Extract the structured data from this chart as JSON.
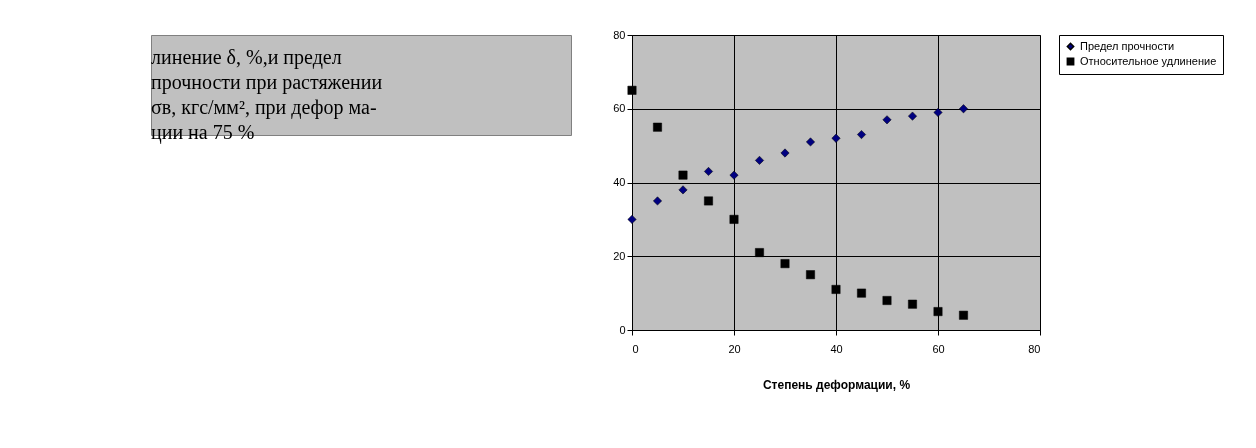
{
  "chart_data": {
    "type": "scatter",
    "xlabel": "Степень деформации, %",
    "annotations": [
      "линение δ, %,и предел",
      "прочности при растяжении",
      "σв, кгс/мм², при дефор ма-",
      "ции на 75 %"
    ],
    "x": [
      0,
      5,
      10,
      15,
      20,
      25,
      30,
      35,
      40,
      45,
      50,
      55,
      60,
      65
    ],
    "series": [
      {
        "name": "Предел прочности",
        "color": "#000080",
        "marker": "diamond",
        "values": [
          30,
          35,
          38,
          43,
          42,
          46,
          48,
          51,
          52,
          53,
          57,
          58,
          59,
          60
        ]
      },
      {
        "name": "Относительное удлинение",
        "color": "#000000",
        "marker": "square",
        "values": [
          65,
          55,
          42,
          35,
          30,
          21,
          18,
          15,
          11,
          10,
          8,
          7,
          5,
          4
        ]
      }
    ],
    "xlim": [
      0,
      80
    ],
    "xticks": [
      0,
      20,
      40,
      60,
      80
    ],
    "ylim": [
      0,
      80
    ],
    "yticks": [
      0,
      20,
      40,
      60,
      80
    ],
    "grid": true,
    "legend": "right"
  }
}
